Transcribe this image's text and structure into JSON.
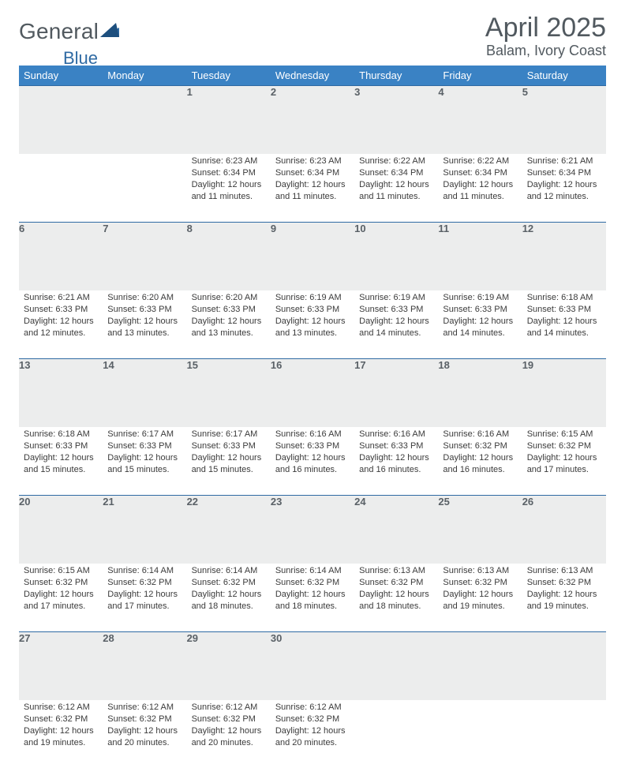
{
  "brand": {
    "part1": "General",
    "part2": "Blue",
    "color_text": "#51595f",
    "mark_color": "#2f6aa3"
  },
  "header": {
    "title": "April 2025",
    "location": "Balam, Ivory Coast"
  },
  "style": {
    "header_bg": "#3a82c4",
    "header_text": "#ffffff",
    "daynum_bg": "#eceded",
    "daynum_border": "#2f6aa3",
    "text_color": "#3b3b3b",
    "font_size_cell": 11,
    "font_size_daynum": 13,
    "font_size_header": 13
  },
  "weekdays": [
    "Sunday",
    "Monday",
    "Tuesday",
    "Wednesday",
    "Thursday",
    "Friday",
    "Saturday"
  ],
  "weeks": [
    {
      "nums": [
        "",
        "",
        "1",
        "2",
        "3",
        "4",
        "5"
      ],
      "cells": [
        null,
        null,
        {
          "sr": "6:23 AM",
          "ss": "6:34 PM",
          "d": "12 hours and 11 minutes."
        },
        {
          "sr": "6:23 AM",
          "ss": "6:34 PM",
          "d": "12 hours and 11 minutes."
        },
        {
          "sr": "6:22 AM",
          "ss": "6:34 PM",
          "d": "12 hours and 11 minutes."
        },
        {
          "sr": "6:22 AM",
          "ss": "6:34 PM",
          "d": "12 hours and 11 minutes."
        },
        {
          "sr": "6:21 AM",
          "ss": "6:34 PM",
          "d": "12 hours and 12 minutes."
        }
      ]
    },
    {
      "nums": [
        "6",
        "7",
        "8",
        "9",
        "10",
        "11",
        "12"
      ],
      "cells": [
        {
          "sr": "6:21 AM",
          "ss": "6:33 PM",
          "d": "12 hours and 12 minutes."
        },
        {
          "sr": "6:20 AM",
          "ss": "6:33 PM",
          "d": "12 hours and 13 minutes."
        },
        {
          "sr": "6:20 AM",
          "ss": "6:33 PM",
          "d": "12 hours and 13 minutes."
        },
        {
          "sr": "6:19 AM",
          "ss": "6:33 PM",
          "d": "12 hours and 13 minutes."
        },
        {
          "sr": "6:19 AM",
          "ss": "6:33 PM",
          "d": "12 hours and 14 minutes."
        },
        {
          "sr": "6:19 AM",
          "ss": "6:33 PM",
          "d": "12 hours and 14 minutes."
        },
        {
          "sr": "6:18 AM",
          "ss": "6:33 PM",
          "d": "12 hours and 14 minutes."
        }
      ]
    },
    {
      "nums": [
        "13",
        "14",
        "15",
        "16",
        "17",
        "18",
        "19"
      ],
      "cells": [
        {
          "sr": "6:18 AM",
          "ss": "6:33 PM",
          "d": "12 hours and 15 minutes."
        },
        {
          "sr": "6:17 AM",
          "ss": "6:33 PM",
          "d": "12 hours and 15 minutes."
        },
        {
          "sr": "6:17 AM",
          "ss": "6:33 PM",
          "d": "12 hours and 15 minutes."
        },
        {
          "sr": "6:16 AM",
          "ss": "6:33 PM",
          "d": "12 hours and 16 minutes."
        },
        {
          "sr": "6:16 AM",
          "ss": "6:33 PM",
          "d": "12 hours and 16 minutes."
        },
        {
          "sr": "6:16 AM",
          "ss": "6:32 PM",
          "d": "12 hours and 16 minutes."
        },
        {
          "sr": "6:15 AM",
          "ss": "6:32 PM",
          "d": "12 hours and 17 minutes."
        }
      ]
    },
    {
      "nums": [
        "20",
        "21",
        "22",
        "23",
        "24",
        "25",
        "26"
      ],
      "cells": [
        {
          "sr": "6:15 AM",
          "ss": "6:32 PM",
          "d": "12 hours and 17 minutes."
        },
        {
          "sr": "6:14 AM",
          "ss": "6:32 PM",
          "d": "12 hours and 17 minutes."
        },
        {
          "sr": "6:14 AM",
          "ss": "6:32 PM",
          "d": "12 hours and 18 minutes."
        },
        {
          "sr": "6:14 AM",
          "ss": "6:32 PM",
          "d": "12 hours and 18 minutes."
        },
        {
          "sr": "6:13 AM",
          "ss": "6:32 PM",
          "d": "12 hours and 18 minutes."
        },
        {
          "sr": "6:13 AM",
          "ss": "6:32 PM",
          "d": "12 hours and 19 minutes."
        },
        {
          "sr": "6:13 AM",
          "ss": "6:32 PM",
          "d": "12 hours and 19 minutes."
        }
      ]
    },
    {
      "nums": [
        "27",
        "28",
        "29",
        "30",
        "",
        "",
        ""
      ],
      "cells": [
        {
          "sr": "6:12 AM",
          "ss": "6:32 PM",
          "d": "12 hours and 19 minutes."
        },
        {
          "sr": "6:12 AM",
          "ss": "6:32 PM",
          "d": "12 hours and 20 minutes."
        },
        {
          "sr": "6:12 AM",
          "ss": "6:32 PM",
          "d": "12 hours and 20 minutes."
        },
        {
          "sr": "6:12 AM",
          "ss": "6:32 PM",
          "d": "12 hours and 20 minutes."
        },
        null,
        null,
        null
      ]
    }
  ],
  "labels": {
    "sunrise": "Sunrise:",
    "sunset": "Sunset:",
    "daylight": "Daylight:"
  }
}
